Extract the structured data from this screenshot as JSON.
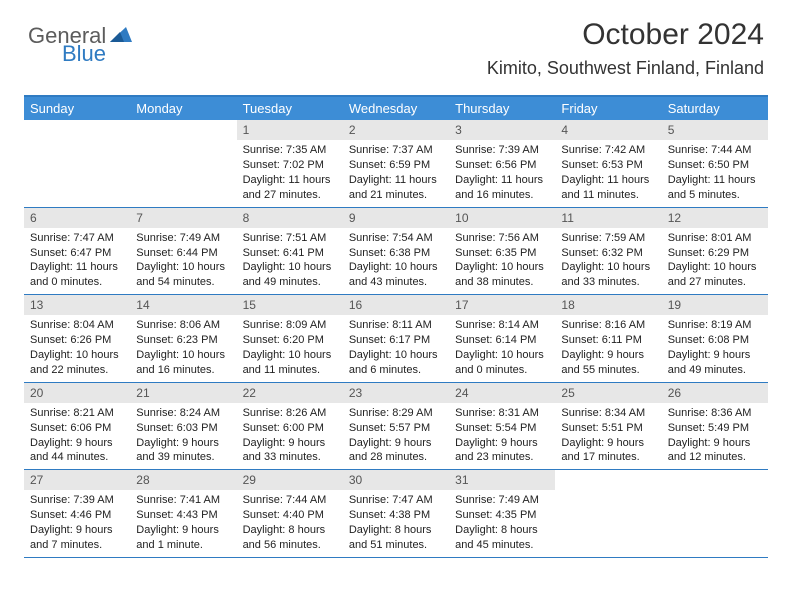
{
  "logo": {
    "word1": "General",
    "word2": "Blue"
  },
  "title": "October 2024",
  "location": "Kimito, Southwest Finland, Finland",
  "colors": {
    "header_bar": "#3d8dd6",
    "border": "#2f7bc2",
    "daynum_bg": "#e7e7e7",
    "text": "#212121",
    "logo_gray": "#5c5c5c",
    "logo_blue": "#2f7bc2"
  },
  "weekdays": [
    "Sunday",
    "Monday",
    "Tuesday",
    "Wednesday",
    "Thursday",
    "Friday",
    "Saturday"
  ],
  "weeks": [
    [
      {
        "n": "",
        "sr": "",
        "ss": "",
        "dl": ""
      },
      {
        "n": "",
        "sr": "",
        "ss": "",
        "dl": ""
      },
      {
        "n": "1",
        "sr": "Sunrise: 7:35 AM",
        "ss": "Sunset: 7:02 PM",
        "dl": "Daylight: 11 hours and 27 minutes."
      },
      {
        "n": "2",
        "sr": "Sunrise: 7:37 AM",
        "ss": "Sunset: 6:59 PM",
        "dl": "Daylight: 11 hours and 21 minutes."
      },
      {
        "n": "3",
        "sr": "Sunrise: 7:39 AM",
        "ss": "Sunset: 6:56 PM",
        "dl": "Daylight: 11 hours and 16 minutes."
      },
      {
        "n": "4",
        "sr": "Sunrise: 7:42 AM",
        "ss": "Sunset: 6:53 PM",
        "dl": "Daylight: 11 hours and 11 minutes."
      },
      {
        "n": "5",
        "sr": "Sunrise: 7:44 AM",
        "ss": "Sunset: 6:50 PM",
        "dl": "Daylight: 11 hours and 5 minutes."
      }
    ],
    [
      {
        "n": "6",
        "sr": "Sunrise: 7:47 AM",
        "ss": "Sunset: 6:47 PM",
        "dl": "Daylight: 11 hours and 0 minutes."
      },
      {
        "n": "7",
        "sr": "Sunrise: 7:49 AM",
        "ss": "Sunset: 6:44 PM",
        "dl": "Daylight: 10 hours and 54 minutes."
      },
      {
        "n": "8",
        "sr": "Sunrise: 7:51 AM",
        "ss": "Sunset: 6:41 PM",
        "dl": "Daylight: 10 hours and 49 minutes."
      },
      {
        "n": "9",
        "sr": "Sunrise: 7:54 AM",
        "ss": "Sunset: 6:38 PM",
        "dl": "Daylight: 10 hours and 43 minutes."
      },
      {
        "n": "10",
        "sr": "Sunrise: 7:56 AM",
        "ss": "Sunset: 6:35 PM",
        "dl": "Daylight: 10 hours and 38 minutes."
      },
      {
        "n": "11",
        "sr": "Sunrise: 7:59 AM",
        "ss": "Sunset: 6:32 PM",
        "dl": "Daylight: 10 hours and 33 minutes."
      },
      {
        "n": "12",
        "sr": "Sunrise: 8:01 AM",
        "ss": "Sunset: 6:29 PM",
        "dl": "Daylight: 10 hours and 27 minutes."
      }
    ],
    [
      {
        "n": "13",
        "sr": "Sunrise: 8:04 AM",
        "ss": "Sunset: 6:26 PM",
        "dl": "Daylight: 10 hours and 22 minutes."
      },
      {
        "n": "14",
        "sr": "Sunrise: 8:06 AM",
        "ss": "Sunset: 6:23 PM",
        "dl": "Daylight: 10 hours and 16 minutes."
      },
      {
        "n": "15",
        "sr": "Sunrise: 8:09 AM",
        "ss": "Sunset: 6:20 PM",
        "dl": "Daylight: 10 hours and 11 minutes."
      },
      {
        "n": "16",
        "sr": "Sunrise: 8:11 AM",
        "ss": "Sunset: 6:17 PM",
        "dl": "Daylight: 10 hours and 6 minutes."
      },
      {
        "n": "17",
        "sr": "Sunrise: 8:14 AM",
        "ss": "Sunset: 6:14 PM",
        "dl": "Daylight: 10 hours and 0 minutes."
      },
      {
        "n": "18",
        "sr": "Sunrise: 8:16 AM",
        "ss": "Sunset: 6:11 PM",
        "dl": "Daylight: 9 hours and 55 minutes."
      },
      {
        "n": "19",
        "sr": "Sunrise: 8:19 AM",
        "ss": "Sunset: 6:08 PM",
        "dl": "Daylight: 9 hours and 49 minutes."
      }
    ],
    [
      {
        "n": "20",
        "sr": "Sunrise: 8:21 AM",
        "ss": "Sunset: 6:06 PM",
        "dl": "Daylight: 9 hours and 44 minutes."
      },
      {
        "n": "21",
        "sr": "Sunrise: 8:24 AM",
        "ss": "Sunset: 6:03 PM",
        "dl": "Daylight: 9 hours and 39 minutes."
      },
      {
        "n": "22",
        "sr": "Sunrise: 8:26 AM",
        "ss": "Sunset: 6:00 PM",
        "dl": "Daylight: 9 hours and 33 minutes."
      },
      {
        "n": "23",
        "sr": "Sunrise: 8:29 AM",
        "ss": "Sunset: 5:57 PM",
        "dl": "Daylight: 9 hours and 28 minutes."
      },
      {
        "n": "24",
        "sr": "Sunrise: 8:31 AM",
        "ss": "Sunset: 5:54 PM",
        "dl": "Daylight: 9 hours and 23 minutes."
      },
      {
        "n": "25",
        "sr": "Sunrise: 8:34 AM",
        "ss": "Sunset: 5:51 PM",
        "dl": "Daylight: 9 hours and 17 minutes."
      },
      {
        "n": "26",
        "sr": "Sunrise: 8:36 AM",
        "ss": "Sunset: 5:49 PM",
        "dl": "Daylight: 9 hours and 12 minutes."
      }
    ],
    [
      {
        "n": "27",
        "sr": "Sunrise: 7:39 AM",
        "ss": "Sunset: 4:46 PM",
        "dl": "Daylight: 9 hours and 7 minutes."
      },
      {
        "n": "28",
        "sr": "Sunrise: 7:41 AM",
        "ss": "Sunset: 4:43 PM",
        "dl": "Daylight: 9 hours and 1 minute."
      },
      {
        "n": "29",
        "sr": "Sunrise: 7:44 AM",
        "ss": "Sunset: 4:40 PM",
        "dl": "Daylight: 8 hours and 56 minutes."
      },
      {
        "n": "30",
        "sr": "Sunrise: 7:47 AM",
        "ss": "Sunset: 4:38 PM",
        "dl": "Daylight: 8 hours and 51 minutes."
      },
      {
        "n": "31",
        "sr": "Sunrise: 7:49 AM",
        "ss": "Sunset: 4:35 PM",
        "dl": "Daylight: 8 hours and 45 minutes."
      },
      {
        "n": "",
        "sr": "",
        "ss": "",
        "dl": ""
      },
      {
        "n": "",
        "sr": "",
        "ss": "",
        "dl": ""
      }
    ]
  ]
}
